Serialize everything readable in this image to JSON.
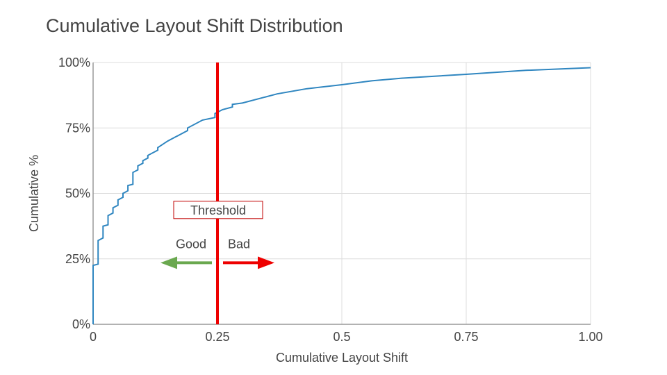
{
  "chart_data": {
    "type": "line",
    "title": "Cumulative Layout Shift Distribution",
    "xlabel": "Cumulative Layout Shift",
    "ylabel": "Cumulative %",
    "xlim": [
      0,
      1.0
    ],
    "ylim": [
      0,
      100
    ],
    "x_ticks": [
      0,
      0.25,
      0.5,
      0.75,
      1.0
    ],
    "x_tick_labels": [
      "0",
      "0.25",
      "0.5",
      "0.75",
      "1.00"
    ],
    "y_ticks": [
      0,
      25,
      50,
      75,
      100
    ],
    "y_tick_labels": [
      "0%",
      "25%",
      "50%",
      "75%",
      "100%"
    ],
    "grid": true,
    "series": [
      {
        "color": "#2f86c0",
        "points": [
          [
            0,
            0
          ],
          [
            0,
            22.5
          ],
          [
            0.01,
            23
          ],
          [
            0.01,
            32
          ],
          [
            0.02,
            33
          ],
          [
            0.02,
            37.5
          ],
          [
            0.03,
            38
          ],
          [
            0.03,
            41.5
          ],
          [
            0.04,
            42.5
          ],
          [
            0.04,
            44.5
          ],
          [
            0.05,
            45.5
          ],
          [
            0.05,
            47.5
          ],
          [
            0.06,
            48.5
          ],
          [
            0.06,
            50
          ],
          [
            0.07,
            51
          ],
          [
            0.07,
            53
          ],
          [
            0.08,
            53.5
          ],
          [
            0.08,
            58
          ],
          [
            0.09,
            59
          ],
          [
            0.09,
            60.5
          ],
          [
            0.1,
            61.5
          ],
          [
            0.1,
            62.5
          ],
          [
            0.11,
            63.5
          ],
          [
            0.11,
            64.5
          ],
          [
            0.13,
            66.5
          ],
          [
            0.13,
            67.5
          ],
          [
            0.15,
            70
          ],
          [
            0.19,
            74
          ],
          [
            0.19,
            75
          ],
          [
            0.22,
            78
          ],
          [
            0.245,
            79
          ],
          [
            0.245,
            80.5
          ],
          [
            0.26,
            82
          ],
          [
            0.28,
            83
          ],
          [
            0.28,
            84
          ],
          [
            0.3,
            84.5
          ],
          [
            0.37,
            88
          ],
          [
            0.43,
            90
          ],
          [
            0.5,
            91.5
          ],
          [
            0.56,
            93
          ],
          [
            0.62,
            94
          ],
          [
            0.75,
            95.5
          ],
          [
            0.87,
            97
          ],
          [
            1.0,
            98
          ]
        ]
      }
    ],
    "threshold": {
      "x": 0.25,
      "label": "Threshold",
      "color": "#ee0000"
    },
    "annotations": {
      "good": "Good",
      "bad": "Bad",
      "good_color": "#6aa84f",
      "bad_color": "#ee0000"
    }
  }
}
